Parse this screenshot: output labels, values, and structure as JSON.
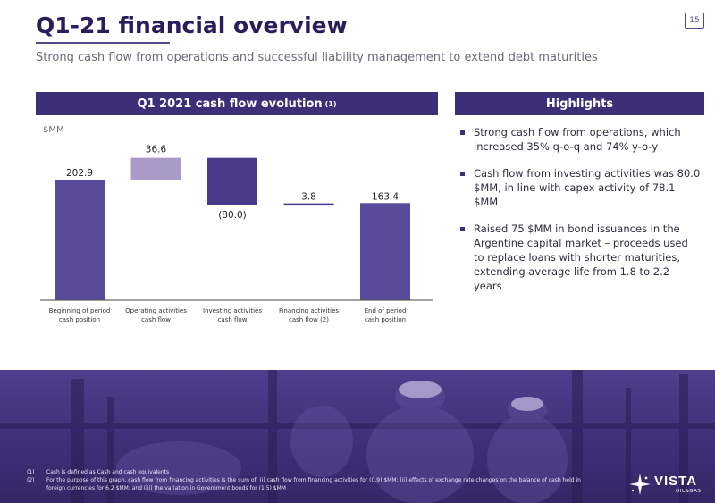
{
  "page": {
    "number": "15"
  },
  "header": {
    "title": "Q1-21 financial overview",
    "subtitle": "Strong cash flow from operations and successful liability management to extend debt maturities"
  },
  "chart_panel": {
    "title": "Q1 2021 cash flow evolution",
    "title_note": "(1)"
  },
  "highlights": {
    "title": "Highlights",
    "items": [
      "Strong cash flow from operations, which increased 35% q-o-q and 74% y-o-y",
      "Cash flow from investing activities was 80.0 $MM, in line with capex activity of 78.1 $MM",
      "Raised 75 $MM in bond issuances in the Argentine capital market – proceeds used to replace loans with shorter maturities, extending average life from 1.8 to 2.2 years"
    ]
  },
  "chart_data": {
    "type": "bar",
    "subtype": "waterfall",
    "unit": "$MM",
    "categories": [
      [
        "Beginning of period",
        "cash position"
      ],
      [
        "Operating activities",
        "cash flow"
      ],
      [
        "Investing activities",
        "cash flow"
      ],
      [
        "Financing activities",
        "cash flow (2)"
      ],
      [
        "End of period",
        "cash position"
      ]
    ],
    "values": [
      202.9,
      36.6,
      -80.0,
      3.8,
      163.4
    ],
    "value_labels": [
      "202.9",
      "36.6",
      "(80.0)",
      "3.8",
      "163.4"
    ],
    "bar_kinds": [
      "total",
      "delta",
      "delta",
      "delta",
      "total"
    ],
    "ylim": [
      0,
      250
    ],
    "grid": false,
    "legend": "none",
    "colors": {
      "total": "#5a4a9c",
      "positive": "#a99ac8",
      "negative": "#4a3a8a",
      "financing": "#4a3a8a",
      "axis": "#444444"
    }
  },
  "footnotes": [
    {
      "num": "(1)",
      "text": "Cash is defined as Cash and cash equivalents"
    },
    {
      "num": "(2)",
      "text": "For the purpose of this graph, cash flow from financing activities is the sum of: (i) cash flow from financing activities for (0.9) $MM; (ii) effects of exchange rate changes on the balance of cash held in foreign currencies for 6.2 $MM; and (iii) the variation in Government bonds for (1.5) $MM"
    }
  ],
  "logo": {
    "name": "VISTA",
    "sub": "OIL&GAS"
  }
}
